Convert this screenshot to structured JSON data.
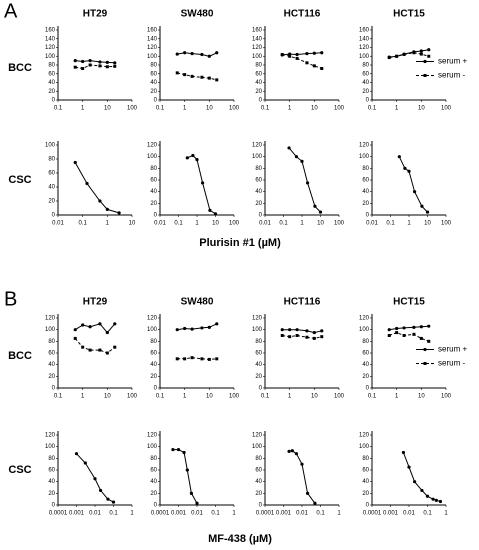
{
  "panels": [
    {
      "label": "A",
      "xlabel": "Plurisin #1 (µM)",
      "rows": [
        "BCC",
        "CSC"
      ]
    },
    {
      "label": "B",
      "xlabel": "MF-438 (µM)",
      "rows": [
        "BCC",
        "CSC"
      ]
    }
  ],
  "chart_data": [
    {
      "type": "line",
      "title": "HT29",
      "xscale": "log",
      "xlim": [
        0.1,
        100
      ],
      "xticks": [
        0.1,
        1,
        10,
        100
      ],
      "ylim": [
        0,
        160
      ],
      "yticks": [
        0,
        20,
        40,
        60,
        80,
        100,
        120,
        140,
        160
      ],
      "x": [
        0.5,
        1,
        2,
        5,
        10,
        20
      ],
      "series": [
        {
          "color": "#000000",
          "dash": false,
          "marker": "circle",
          "values": [
            90,
            88,
            90,
            87,
            86,
            85
          ]
        },
        {
          "color": "#000000",
          "dash": true,
          "marker": "square",
          "values": [
            75,
            72,
            80,
            78,
            76,
            77
          ]
        }
      ]
    },
    {
      "type": "line",
      "title": "SW480",
      "xscale": "log",
      "xlim": [
        0.1,
        100
      ],
      "xticks": [
        0.1,
        1,
        10,
        100
      ],
      "ylim": [
        0,
        160
      ],
      "yticks": [
        0,
        20,
        40,
        60,
        80,
        100,
        120,
        140,
        160
      ],
      "x": [
        0.5,
        1,
        2,
        5,
        10,
        20
      ],
      "series": [
        {
          "color": "#000000",
          "dash": false,
          "marker": "circle",
          "values": [
            105,
            108,
            106,
            104,
            100,
            108
          ]
        },
        {
          "color": "#000000",
          "dash": true,
          "marker": "square",
          "values": [
            62,
            58,
            54,
            52,
            50,
            46
          ]
        }
      ]
    },
    {
      "type": "line",
      "title": "HCT116",
      "xscale": "log",
      "xlim": [
        0.1,
        100
      ],
      "xticks": [
        0.1,
        1,
        10,
        100
      ],
      "ylim": [
        0,
        160
      ],
      "yticks": [
        0,
        20,
        40,
        60,
        80,
        100,
        120,
        140,
        160
      ],
      "x": [
        0.5,
        1,
        2,
        5,
        10,
        20
      ],
      "series": [
        {
          "color": "#000000",
          "dash": false,
          "marker": "circle",
          "values": [
            103,
            105,
            104,
            106,
            107,
            108
          ]
        },
        {
          "color": "#000000",
          "dash": true,
          "marker": "square",
          "values": [
            104,
            100,
            95,
            85,
            78,
            72
          ]
        }
      ]
    },
    {
      "type": "line",
      "title": "HCT15",
      "xscale": "log",
      "xlim": [
        0.1,
        100
      ],
      "xticks": [
        0.1,
        1,
        10,
        100
      ],
      "ylim": [
        0,
        160
      ],
      "yticks": [
        0,
        20,
        40,
        60,
        80,
        100,
        120,
        140,
        160
      ],
      "x": [
        0.5,
        1,
        2,
        5,
        10,
        20
      ],
      "legend": "right",
      "series": [
        {
          "name": "serum +",
          "color": "#000000",
          "dash": false,
          "marker": "circle",
          "values": [
            98,
            100,
            105,
            110,
            112,
            115
          ]
        },
        {
          "name": "serum -",
          "color": "#000000",
          "dash": true,
          "marker": "square",
          "values": [
            97,
            100,
            104,
            108,
            105,
            100
          ]
        }
      ]
    },
    {
      "type": "line",
      "xscale": "log",
      "xlim": [
        0.01,
        10
      ],
      "xticks": [
        0.01,
        0.1,
        1,
        10
      ],
      "ylim": [
        0,
        100
      ],
      "yticks": [
        0,
        20,
        40,
        60,
        80,
        100
      ],
      "x": [
        0.05,
        0.15,
        0.5,
        1,
        3
      ],
      "series": [
        {
          "color": "#000000",
          "dash": false,
          "marker": "circle",
          "values": [
            75,
            45,
            20,
            8,
            3
          ]
        }
      ]
    },
    {
      "type": "line",
      "xscale": "log",
      "xlim": [
        0.01,
        100
      ],
      "xticks": [
        0.01,
        0.1,
        1,
        10,
        100
      ],
      "ylim": [
        0,
        120
      ],
      "yticks": [
        0,
        20,
        40,
        60,
        80,
        100,
        120
      ],
      "x": [
        0.3,
        0.6,
        1,
        2,
        5,
        10
      ],
      "series": [
        {
          "color": "#000000",
          "dash": false,
          "marker": "circle",
          "values": [
            98,
            102,
            95,
            55,
            8,
            2
          ]
        }
      ]
    },
    {
      "type": "line",
      "xscale": "log",
      "xlim": [
        0.01,
        100
      ],
      "xticks": [
        0.01,
        0.1,
        1,
        10,
        100
      ],
      "ylim": [
        0,
        120
      ],
      "yticks": [
        0,
        20,
        40,
        60,
        80,
        100,
        120
      ],
      "x": [
        0.2,
        0.5,
        1,
        2,
        5,
        10
      ],
      "series": [
        {
          "color": "#000000",
          "dash": false,
          "marker": "circle",
          "values": [
            115,
            100,
            92,
            55,
            15,
            5
          ]
        }
      ]
    },
    {
      "type": "line",
      "xscale": "log",
      "xlim": [
        0.01,
        100
      ],
      "xticks": [
        0.01,
        0.1,
        1,
        10,
        100
      ],
      "ylim": [
        0,
        120
      ],
      "yticks": [
        0,
        20,
        40,
        60,
        80,
        100,
        120
      ],
      "x": [
        0.3,
        0.6,
        1,
        2,
        5,
        10
      ],
      "series": [
        {
          "color": "#000000",
          "dash": false,
          "marker": "circle",
          "values": [
            100,
            80,
            75,
            40,
            15,
            5
          ]
        }
      ]
    },
    {
      "type": "line",
      "title": "HT29",
      "xscale": "log",
      "xlim": [
        0.1,
        100
      ],
      "xticks": [
        0.1,
        1,
        10,
        100
      ],
      "ylim": [
        0,
        120
      ],
      "yticks": [
        0,
        20,
        40,
        60,
        80,
        100,
        120
      ],
      "x": [
        0.5,
        1,
        2,
        5,
        10,
        20
      ],
      "series": [
        {
          "color": "#000000",
          "dash": false,
          "marker": "circle",
          "values": [
            100,
            108,
            105,
            110,
            95,
            110
          ]
        },
        {
          "color": "#000000",
          "dash": true,
          "marker": "square",
          "values": [
            85,
            70,
            65,
            65,
            60,
            70
          ]
        }
      ]
    },
    {
      "type": "line",
      "title": "SW480",
      "xscale": "log",
      "xlim": [
        0.1,
        100
      ],
      "xticks": [
        0.1,
        1,
        10,
        100
      ],
      "ylim": [
        0,
        120
      ],
      "yticks": [
        0,
        20,
        40,
        60,
        80,
        100,
        120
      ],
      "x": [
        0.5,
        1,
        2,
        5,
        10,
        20
      ],
      "series": [
        {
          "color": "#000000",
          "dash": false,
          "marker": "circle",
          "values": [
            100,
            102,
            101,
            103,
            104,
            110
          ]
        },
        {
          "color": "#000000",
          "dash": true,
          "marker": "square",
          "values": [
            50,
            50,
            52,
            50,
            49,
            50
          ]
        }
      ]
    },
    {
      "type": "line",
      "title": "HCT116",
      "xscale": "log",
      "xlim": [
        0.1,
        100
      ],
      "xticks": [
        0.1,
        1,
        10,
        100
      ],
      "ylim": [
        0,
        120
      ],
      "yticks": [
        0,
        20,
        40,
        60,
        80,
        100,
        120
      ],
      "x": [
        0.5,
        1,
        2,
        5,
        10,
        20
      ],
      "series": [
        {
          "color": "#000000",
          "dash": false,
          "marker": "circle",
          "values": [
            100,
            100,
            100,
            98,
            95,
            98
          ]
        },
        {
          "color": "#000000",
          "dash": true,
          "marker": "square",
          "values": [
            90,
            88,
            90,
            87,
            85,
            88
          ]
        }
      ]
    },
    {
      "type": "line",
      "title": "HCT15",
      "xscale": "log",
      "xlim": [
        0.1,
        100
      ],
      "xticks": [
        0.1,
        1,
        10,
        100
      ],
      "ylim": [
        0,
        120
      ],
      "yticks": [
        0,
        20,
        40,
        60,
        80,
        100,
        120
      ],
      "x": [
        0.5,
        1,
        2,
        5,
        10,
        20
      ],
      "legend": "right",
      "series": [
        {
          "name": "serum +",
          "color": "#000000",
          "dash": false,
          "marker": "circle",
          "values": [
            100,
            102,
            103,
            104,
            105,
            106
          ]
        },
        {
          "name": "serum -",
          "color": "#000000",
          "dash": true,
          "marker": "square",
          "values": [
            90,
            95,
            90,
            92,
            85,
            80
          ]
        }
      ]
    },
    {
      "type": "line",
      "xscale": "log",
      "xlim": [
        0.0001,
        1
      ],
      "xticks": [
        0.0001,
        0.001,
        0.01,
        0.1,
        1
      ],
      "ylim": [
        0,
        120
      ],
      "yticks": [
        0,
        20,
        40,
        60,
        80,
        100,
        120
      ],
      "x": [
        0.001,
        0.003,
        0.01,
        0.02,
        0.05,
        0.1
      ],
      "series": [
        {
          "color": "#000000",
          "dash": false,
          "marker": "circle",
          "values": [
            88,
            72,
            45,
            25,
            10,
            5
          ]
        }
      ]
    },
    {
      "type": "line",
      "xscale": "log",
      "xlim": [
        0.0001,
        1
      ],
      "xticks": [
        0.0001,
        0.001,
        0.01,
        0.1,
        1
      ],
      "ylim": [
        0,
        120
      ],
      "yticks": [
        0,
        20,
        40,
        60,
        80,
        100,
        120
      ],
      "x": [
        0.0005,
        0.001,
        0.002,
        0.003,
        0.005,
        0.01
      ],
      "series": [
        {
          "color": "#000000",
          "dash": false,
          "marker": "circle",
          "values": [
            95,
            95,
            90,
            60,
            20,
            3
          ]
        }
      ]
    },
    {
      "type": "line",
      "xscale": "log",
      "xlim": [
        0.0001,
        1
      ],
      "xticks": [
        0.0001,
        0.001,
        0.01,
        0.1,
        1
      ],
      "ylim": [
        0,
        120
      ],
      "yticks": [
        0,
        20,
        40,
        60,
        80,
        100,
        120
      ],
      "x": [
        0.002,
        0.003,
        0.005,
        0.01,
        0.02,
        0.05
      ],
      "series": [
        {
          "color": "#000000",
          "dash": false,
          "marker": "circle",
          "values": [
            92,
            93,
            88,
            70,
            20,
            3
          ]
        }
      ]
    },
    {
      "type": "line",
      "xscale": "log",
      "xlim": [
        0.0001,
        1
      ],
      "xticks": [
        0.0001,
        0.001,
        0.01,
        0.1,
        1
      ],
      "ylim": [
        0,
        120
      ],
      "yticks": [
        0,
        20,
        40,
        60,
        80,
        100,
        120
      ],
      "x": [
        0.005,
        0.01,
        0.02,
        0.05,
        0.1,
        0.2,
        0.3,
        0.5
      ],
      "series": [
        {
          "color": "#000000",
          "dash": false,
          "marker": "circle",
          "values": [
            90,
            65,
            40,
            25,
            15,
            10,
            8,
            6
          ]
        }
      ]
    }
  ]
}
